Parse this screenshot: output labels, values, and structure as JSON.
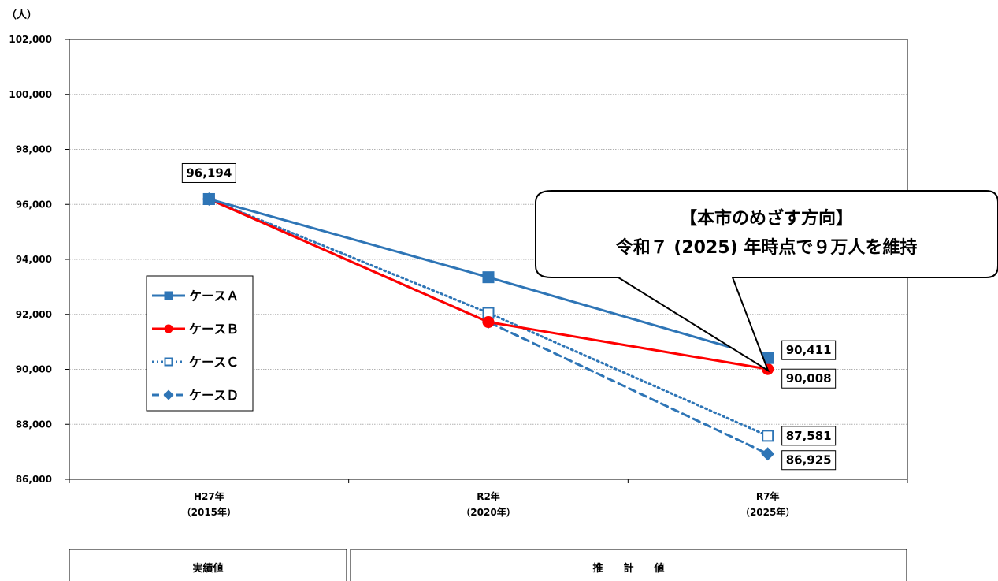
{
  "chart_data": {
    "type": "line",
    "unit_label": "（人）",
    "categories": [
      {
        "line1": "H27年",
        "line2": "（2015年）"
      },
      {
        "line1": "R2年",
        "line2": "（2020年）"
      },
      {
        "line1": "R7年",
        "line2": "（2025年）"
      }
    ],
    "ylim": [
      86000,
      102000
    ],
    "yticks": [
      86000,
      88000,
      90000,
      92000,
      94000,
      96000,
      98000,
      100000,
      102000
    ],
    "ytick_labels": [
      "86,000",
      "88,000",
      "90,000",
      "92,000",
      "94,000",
      "96,000",
      "98,000",
      "100,000",
      "102,000"
    ],
    "grid": "horizontal",
    "legend_placement": "left",
    "series": [
      {
        "name": "ケースＡ",
        "values": [
          96194,
          93350,
          90411
        ],
        "color": "#2e75b6",
        "dash": "solid",
        "marker": "square-filled"
      },
      {
        "name": "ケースＢ",
        "values": [
          96194,
          91720,
          90008
        ],
        "color": "#ff0000",
        "dash": "solid",
        "marker": "circle-filled"
      },
      {
        "name": "ケースＣ",
        "values": [
          96194,
          92050,
          87581
        ],
        "color": "#2e75b6",
        "dash": "dotted",
        "marker": "square-open"
      },
      {
        "name": "ケースＤ",
        "values": [
          96194,
          91720,
          86925
        ],
        "color": "#2e75b6",
        "dash": "dashed",
        "marker": "diamond-filled"
      }
    ],
    "data_labels": [
      {
        "text": "96,194",
        "category": 0,
        "value": 96194
      },
      {
        "text": "90,411",
        "category": 2,
        "value": 90411
      },
      {
        "text": "90,008",
        "category": 2,
        "value": 90008
      },
      {
        "text": "87,581",
        "category": 2,
        "value": 87581
      },
      {
        "text": "86,925",
        "category": 2,
        "value": 86925
      }
    ],
    "callout": {
      "line1": "【本市のめざす方向】",
      "line2": "令和７ (2025) 年時点で９万人を維持"
    }
  },
  "table_header": {
    "actual": "実績値",
    "estimate": "推　　計　　値"
  }
}
